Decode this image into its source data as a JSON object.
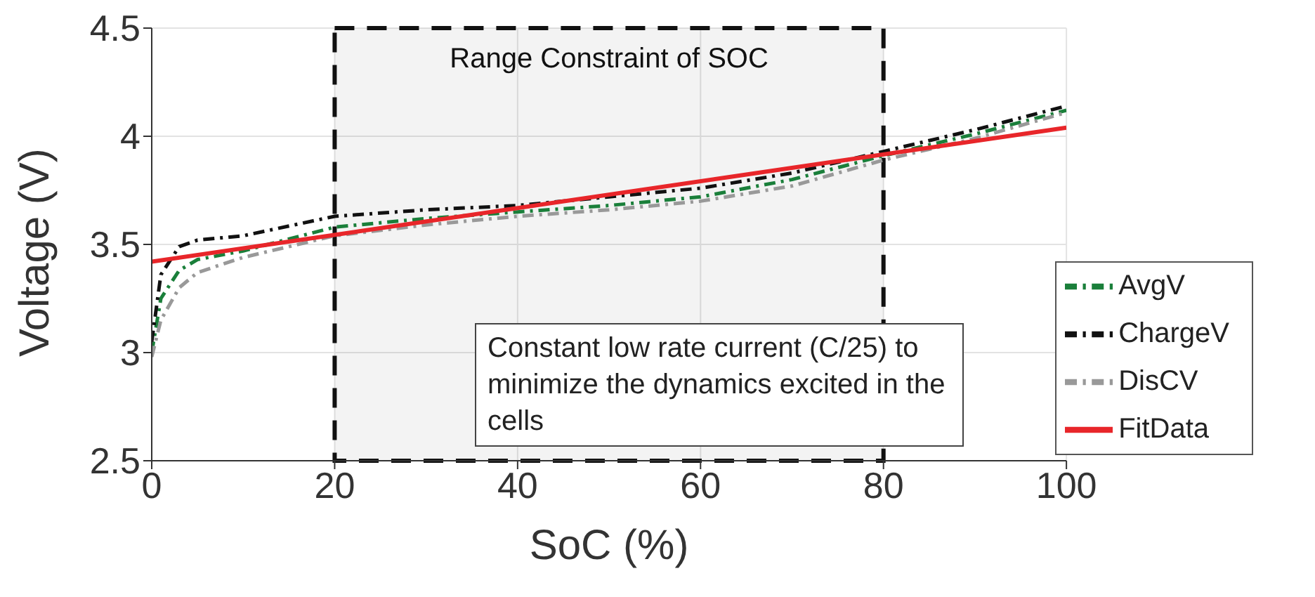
{
  "chart_data": {
    "type": "line",
    "xlabel": "SoC (%)",
    "ylabel": "Voltage (V)",
    "x": [
      0,
      1,
      3,
      5,
      10,
      20,
      30,
      40,
      50,
      60,
      70,
      80,
      90,
      100
    ],
    "series": [
      {
        "name": "AvgV",
        "color": "#1a7f3a",
        "line_style": "dashed",
        "values": [
          3.0,
          3.25,
          3.38,
          3.43,
          3.47,
          3.58,
          3.62,
          3.65,
          3.68,
          3.72,
          3.8,
          3.91,
          4.01,
          4.12
        ]
      },
      {
        "name": "ChargeV",
        "color": "#111111",
        "line_style": "dashed",
        "values": [
          3.05,
          3.36,
          3.49,
          3.52,
          3.54,
          3.63,
          3.66,
          3.68,
          3.72,
          3.76,
          3.83,
          3.93,
          4.03,
          4.14
        ]
      },
      {
        "name": "DisCV",
        "color": "#999999",
        "line_style": "dashed",
        "values": [
          2.98,
          3.15,
          3.3,
          3.37,
          3.44,
          3.54,
          3.59,
          3.63,
          3.66,
          3.7,
          3.77,
          3.89,
          3.99,
          4.11
        ]
      },
      {
        "name": "FitData",
        "color": "#e8262a",
        "line_style": "solid",
        "x": [
          0,
          100
        ],
        "values": [
          3.42,
          4.04
        ]
      }
    ],
    "xlim": [
      0,
      100
    ],
    "xticks": [
      0,
      20,
      40,
      60,
      80,
      100
    ],
    "ylim": [
      2.5,
      4.5
    ],
    "yticks": [
      2.5,
      3,
      3.5,
      4,
      4.5
    ],
    "bands": [
      {
        "axis": "x",
        "from": 20,
        "to": 80,
        "label": "Range Constraint of SOC",
        "color": "#111111"
      }
    ],
    "annotations": [
      "Constant low rate current (C/25) to minimize the dynamics excited in the cells"
    ],
    "grid": true,
    "legend": "right",
    "marker": "none"
  }
}
